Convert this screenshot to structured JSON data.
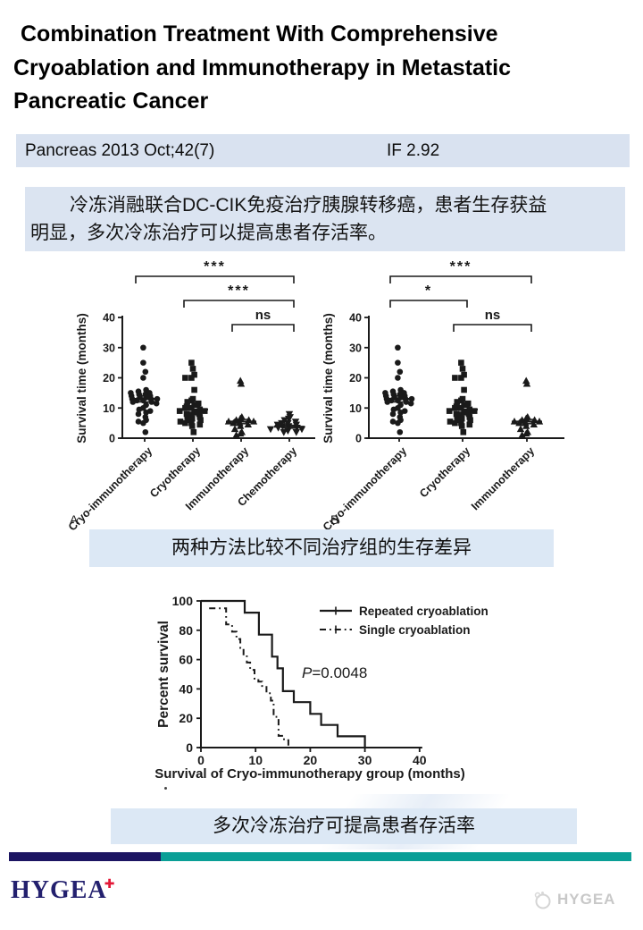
{
  "title": {
    "lines": [
      "Combination Treatment With Comprehensive",
      "Cryoablation and Immunotherapy in Metastatic",
      "Pancreatic Cancer"
    ]
  },
  "journal_banner": {
    "citation": "Pancreas 2013 Oct;42(7)",
    "impact_factor": "IF 2.92",
    "bg": "#d9e2f0"
  },
  "summary_box": {
    "lines": [
      "冷冻消融联合DC-CIK免疫治疗胰腺转移癌，患者生存获益",
      "明显，多次冷冻治疗可以提高患者存活率。"
    ],
    "bg": "#dbe4f1"
  },
  "captions": {
    "scatter": "两种方法比较不同治疗组的生存差异",
    "km": "多次冷冻治疗可提高患者存活率",
    "bg": "#dce8f5"
  },
  "footer": {
    "logo_text": "HYGEA",
    "logo_color": "#23206e",
    "cross_color": "#e31837",
    "bar_navy": "#1c1562",
    "bar_teal": "#0a9f96",
    "watermark": "HYGEA"
  },
  "chart_data": [
    {
      "id": "A",
      "type": "scatter",
      "panel_label": "A",
      "ylabel": "Survival time (months)",
      "ylim": [
        0,
        40
      ],
      "yticks": [
        0,
        10,
        20,
        30,
        40
      ],
      "groups": [
        {
          "label": "Cryo-immunotherapy",
          "marker": "circle",
          "mean": 13,
          "sem": 1,
          "values": [
            30,
            25,
            22,
            20,
            16,
            15.5,
            15,
            15,
            14.5,
            14.5,
            14,
            14,
            13.5,
            13.5,
            13,
            13,
            13,
            12.5,
            12.5,
            12,
            12,
            11.5,
            11,
            10,
            9.5,
            9,
            8.5,
            8,
            7,
            6,
            5.5,
            5,
            2
          ]
        },
        {
          "label": "Cryotherapy",
          "marker": "square",
          "mean": 9.5,
          "sem": 0.9,
          "values": [
            25,
            23,
            21,
            20,
            20,
            16,
            13,
            12.5,
            12,
            11.5,
            11,
            10.5,
            10,
            10,
            9.5,
            9,
            9,
            8.5,
            8,
            8,
            7.5,
            7,
            7,
            6.5,
            6,
            6,
            5.5,
            5,
            5,
            4.5,
            4,
            2
          ]
        },
        {
          "label": "Immunotherapy",
          "marker": "triangle-up",
          "mean": 5.5,
          "sem": 0.7,
          "values": [
            19,
            18,
            7,
            6.5,
            6,
            6,
            5.5,
            5.5,
            5,
            5,
            4.5,
            4,
            3,
            2,
            1.5,
            1
          ]
        },
        {
          "label": "Chemotherapy",
          "marker": "triangle-down",
          "mean": 3.8,
          "sem": 0.5,
          "values": [
            8,
            7,
            6.5,
            6,
            5.5,
            5,
            5,
            4.5,
            4.5,
            4,
            4,
            3.5,
            3.5,
            3,
            3,
            2.5,
            2,
            2
          ]
        }
      ],
      "significance": [
        {
          "between": [
            0,
            3
          ],
          "label": "***"
        },
        {
          "between": [
            1,
            3
          ],
          "label": "***"
        },
        {
          "between": [
            2,
            3
          ],
          "label": "ns"
        }
      ]
    },
    {
      "id": "B",
      "type": "scatter",
      "panel_label": "B",
      "ylabel": "Survival time (months)",
      "ylim": [
        0,
        40
      ],
      "yticks": [
        0,
        10,
        20,
        30,
        40
      ],
      "groups": [
        {
          "label": "Cryo-immunotherapy",
          "marker": "circle",
          "mean": 13,
          "sem": 1,
          "values": [
            30,
            25,
            22,
            20,
            16,
            15.5,
            15,
            15,
            14.5,
            14.5,
            14,
            14,
            13.5,
            13.5,
            13,
            13,
            13,
            12.5,
            12.5,
            12,
            12,
            11.5,
            11,
            10,
            9.5,
            9,
            8.5,
            8,
            7,
            6,
            5.5,
            5,
            2
          ]
        },
        {
          "label": "Cryotherapy",
          "marker": "square",
          "mean": 9.5,
          "sem": 0.9,
          "values": [
            25,
            23,
            21,
            20,
            20,
            16,
            13,
            12.5,
            12,
            11.5,
            11,
            10.5,
            10,
            10,
            9.5,
            9,
            9,
            8.5,
            8,
            8,
            7.5,
            7,
            7,
            6.5,
            6,
            6,
            5.5,
            5,
            5,
            4.5,
            4,
            2
          ]
        },
        {
          "label": "Immunotherapy",
          "marker": "triangle-up",
          "mean": 5.5,
          "sem": 0.7,
          "values": [
            19,
            18,
            7,
            6.5,
            6,
            6,
            5.5,
            5.5,
            5,
            5,
            4.5,
            4,
            3,
            2,
            1.5,
            1
          ]
        }
      ],
      "significance": [
        {
          "between": [
            0,
            2
          ],
          "label": "***"
        },
        {
          "between": [
            0,
            1
          ],
          "label": "*"
        },
        {
          "between": [
            1,
            2
          ],
          "label": "ns"
        }
      ]
    },
    {
      "id": "KM",
      "type": "line",
      "xlabel": "Survival of Cryo-immunotherapy group (months)",
      "ylabel": "Percent survival",
      "xlim": [
        0,
        40
      ],
      "ylim": [
        0,
        100
      ],
      "xticks": [
        0,
        10,
        20,
        30,
        40
      ],
      "yticks": [
        0,
        20,
        40,
        60,
        80,
        100
      ],
      "annotation": "P=0.0048",
      "series": [
        {
          "name": "Repeated cryoablation",
          "style": "solid",
          "points": [
            [
              0,
              100
            ],
            [
              8,
              100
            ],
            [
              8,
              92
            ],
            [
              10.6,
              92
            ],
            [
              10.6,
              77
            ],
            [
              13,
              77
            ],
            [
              13,
              62
            ],
            [
              14,
              62
            ],
            [
              14,
              54
            ],
            [
              15,
              54
            ],
            [
              15,
              38.5
            ],
            [
              17,
              38.5
            ],
            [
              17,
              31
            ],
            [
              20,
              31
            ],
            [
              20,
              23
            ],
            [
              22,
              23
            ],
            [
              22,
              15.4
            ],
            [
              25,
              15.4
            ],
            [
              25,
              7.7
            ],
            [
              30,
              7.7
            ],
            [
              30,
              0
            ]
          ]
        },
        {
          "name": "Single cryoablation",
          "style": "dash-dot",
          "points": [
            [
              1.5,
              95
            ],
            [
              4.6,
              95
            ],
            [
              4.6,
              84
            ],
            [
              5.7,
              84
            ],
            [
              5.7,
              79
            ],
            [
              6.5,
              79
            ],
            [
              6.5,
              74
            ],
            [
              7.2,
              74
            ],
            [
              7.2,
              68
            ],
            [
              7.8,
              68
            ],
            [
              7.8,
              63
            ],
            [
              8.4,
              63
            ],
            [
              8.4,
              58
            ],
            [
              9,
              58
            ],
            [
              9,
              53
            ],
            [
              9.8,
              53
            ],
            [
              9.8,
              47
            ],
            [
              10.5,
              47
            ],
            [
              10.5,
              45
            ],
            [
              11.2,
              45
            ],
            [
              11.2,
              42
            ],
            [
              12,
              42
            ],
            [
              12,
              37
            ],
            [
              12.8,
              37
            ],
            [
              12.8,
              32
            ],
            [
              13.3,
              32
            ],
            [
              13.3,
              21
            ],
            [
              14.2,
              21
            ],
            [
              14.2,
              8
            ],
            [
              15.2,
              8
            ],
            [
              15.2,
              5
            ],
            [
              16,
              5
            ],
            [
              16,
              0
            ]
          ]
        }
      ]
    }
  ]
}
